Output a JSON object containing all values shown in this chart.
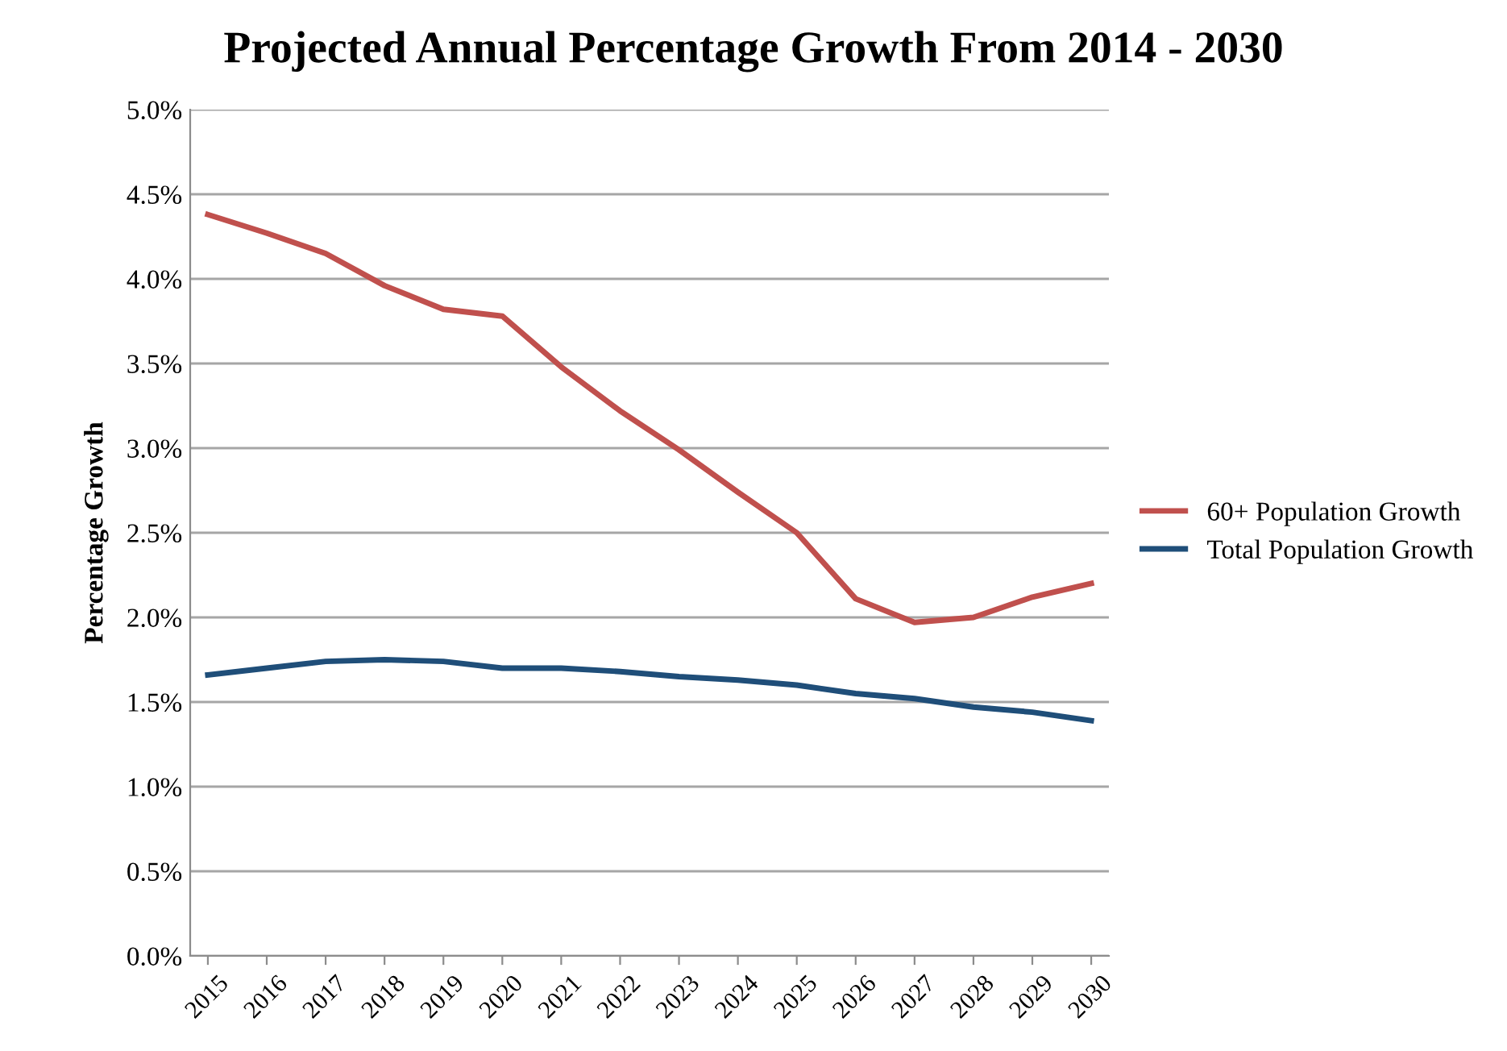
{
  "chart_data": {
    "type": "line",
    "title": "Projected Annual Percentage Growth From 2014 - 2030",
    "ylabel": "Percentage Growth",
    "categories": [
      "2015",
      "2016",
      "2017",
      "2018",
      "2019",
      "2020",
      "2021",
      "2022",
      "2023",
      "2024",
      "2025",
      "2026",
      "2027",
      "2028",
      "2029",
      "2030"
    ],
    "series": [
      {
        "name": "60+ Population Growth",
        "color": "#c0504d",
        "values": [
          4.38,
          4.27,
          4.15,
          3.96,
          3.82,
          3.78,
          3.48,
          3.22,
          2.99,
          2.74,
          2.5,
          2.11,
          1.97,
          2.0,
          2.12,
          2.2
        ]
      },
      {
        "name": "Total Population Growth",
        "color": "#1f4e79",
        "values": [
          1.66,
          1.7,
          1.74,
          1.75,
          1.74,
          1.7,
          1.7,
          1.68,
          1.65,
          1.63,
          1.6,
          1.55,
          1.52,
          1.47,
          1.44,
          1.39
        ]
      }
    ],
    "ylim": [
      0,
      5
    ],
    "yticks": [
      {
        "value": 0,
        "label": "0.0%"
      },
      {
        "value": 0.5,
        "label": "0.5%"
      },
      {
        "value": 1,
        "label": "1.0%"
      },
      {
        "value": 1.5,
        "label": "1.5%"
      },
      {
        "value": 2,
        "label": "2.0%"
      },
      {
        "value": 2.5,
        "label": "2.5%"
      },
      {
        "value": 3,
        "label": "3.0%"
      },
      {
        "value": 3.5,
        "label": "3.5%"
      },
      {
        "value": 4,
        "label": "4.0%"
      },
      {
        "value": 4.5,
        "label": "4.5%"
      },
      {
        "value": 5,
        "label": "5.0%"
      }
    ],
    "grid": "y",
    "legend": "right",
    "marker": "none",
    "line_style": "solid"
  }
}
